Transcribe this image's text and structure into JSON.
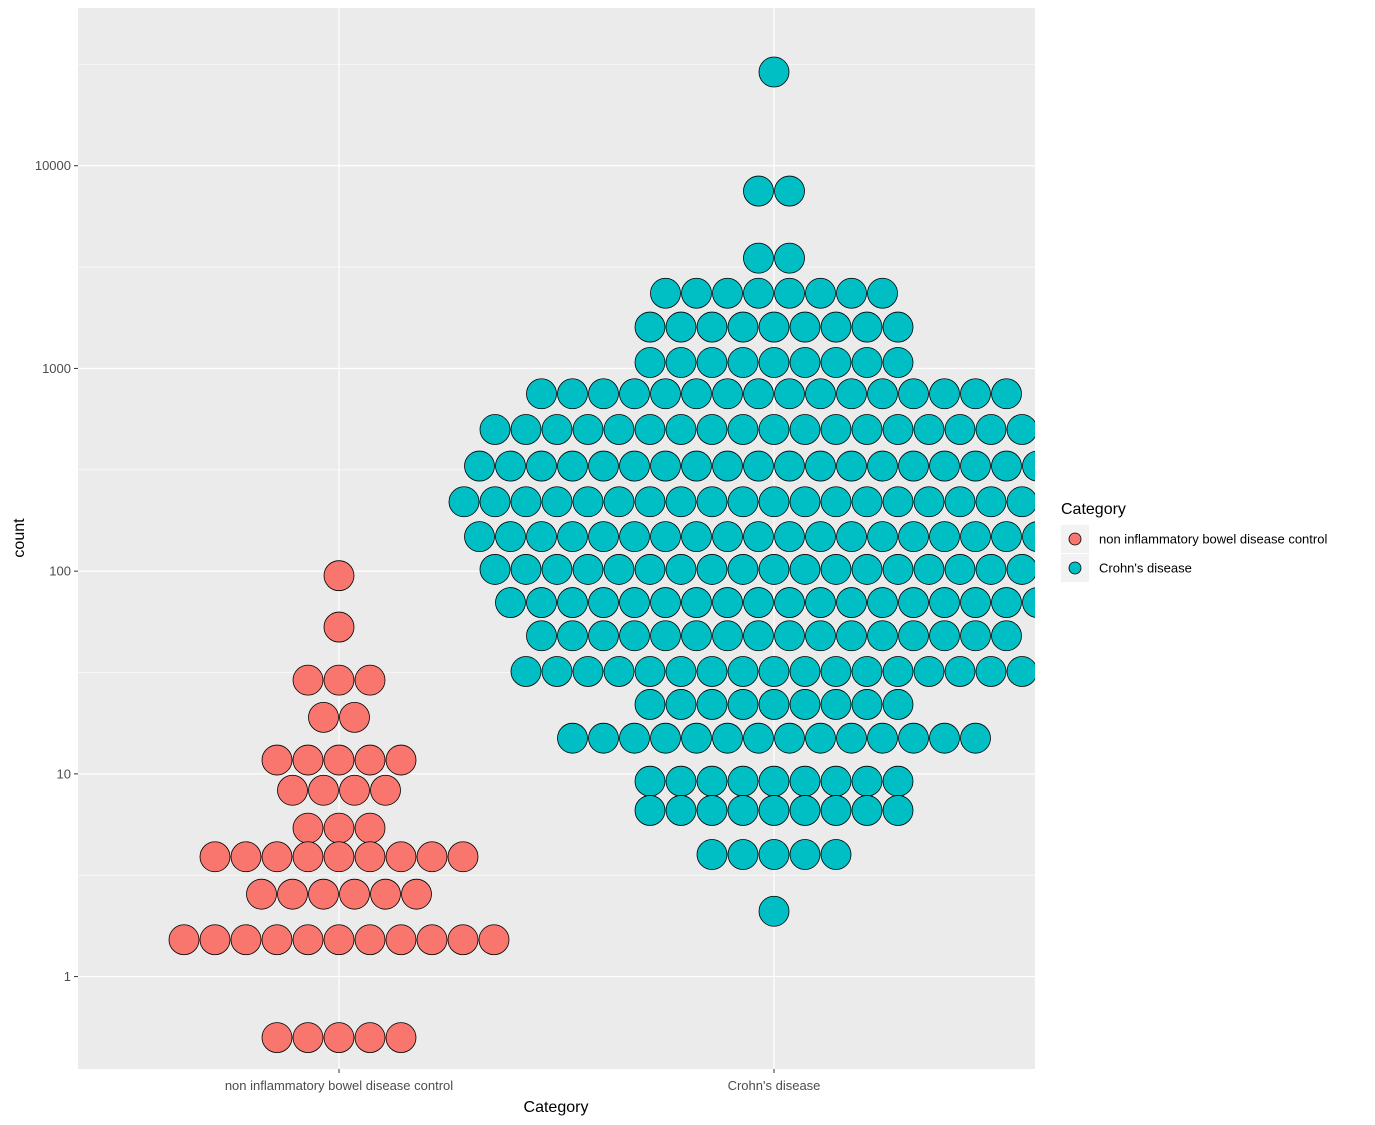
{
  "chart_data": {
    "type": "dotplot",
    "title": "",
    "xlabel": "Category",
    "ylabel": "count",
    "y_scale": "log10",
    "ylim": [
      0.35,
      60000
    ],
    "y_ticks": [
      {
        "value": 1,
        "label": "1"
      },
      {
        "value": 10,
        "label": "10"
      },
      {
        "value": 100,
        "label": "100"
      },
      {
        "value": 1000,
        "label": "1000"
      },
      {
        "value": 10000,
        "label": "10000"
      }
    ],
    "categories": [
      "non inflammatory bowel disease control",
      "Crohn's disease"
    ],
    "grid": true,
    "legend": {
      "title": "Category",
      "position": "right",
      "entries": [
        {
          "label": "non inflammatory bowel disease control",
          "color": "#F8766D"
        },
        {
          "label": "Crohn's disease",
          "color": "#00BFC4"
        }
      ]
    },
    "series": [
      {
        "category": "non inflammatory bowel disease control",
        "color": "#F8766D",
        "bins": [
          {
            "y": 95,
            "count": 1
          },
          {
            "y": 53,
            "count": 1
          },
          {
            "y": 29,
            "count": 3
          },
          {
            "y": 19,
            "count": 2
          },
          {
            "y": 11.7,
            "count": 5
          },
          {
            "y": 8.3,
            "count": 4
          },
          {
            "y": 5.4,
            "count": 3
          },
          {
            "y": 3.9,
            "count": 9
          },
          {
            "y": 2.55,
            "count": 6
          },
          {
            "y": 1.52,
            "count": 11
          },
          {
            "y": 0.5,
            "count": 5
          }
        ]
      },
      {
        "category": "Crohn's disease",
        "color": "#00BFC4",
        "bins": [
          {
            "y": 29000,
            "count": 1
          },
          {
            "y": 7500,
            "count": 2
          },
          {
            "y": 3500,
            "count": 2
          },
          {
            "y": 2350,
            "count": 8
          },
          {
            "y": 1600,
            "count": 9
          },
          {
            "y": 1070,
            "count": 9
          },
          {
            "y": 750,
            "count": 16
          },
          {
            "y": 500,
            "count": 19
          },
          {
            "y": 330,
            "count": 20
          },
          {
            "y": 220,
            "count": 21
          },
          {
            "y": 148,
            "count": 20
          },
          {
            "y": 102,
            "count": 19
          },
          {
            "y": 70,
            "count": 18
          },
          {
            "y": 48,
            "count": 16
          },
          {
            "y": 32,
            "count": 17
          },
          {
            "y": 22,
            "count": 9
          },
          {
            "y": 15,
            "count": 14
          },
          {
            "y": 9.2,
            "count": 9
          },
          {
            "y": 6.6,
            "count": 9
          },
          {
            "y": 4.0,
            "count": 5
          },
          {
            "y": 2.1,
            "count": 1
          }
        ]
      }
    ]
  }
}
